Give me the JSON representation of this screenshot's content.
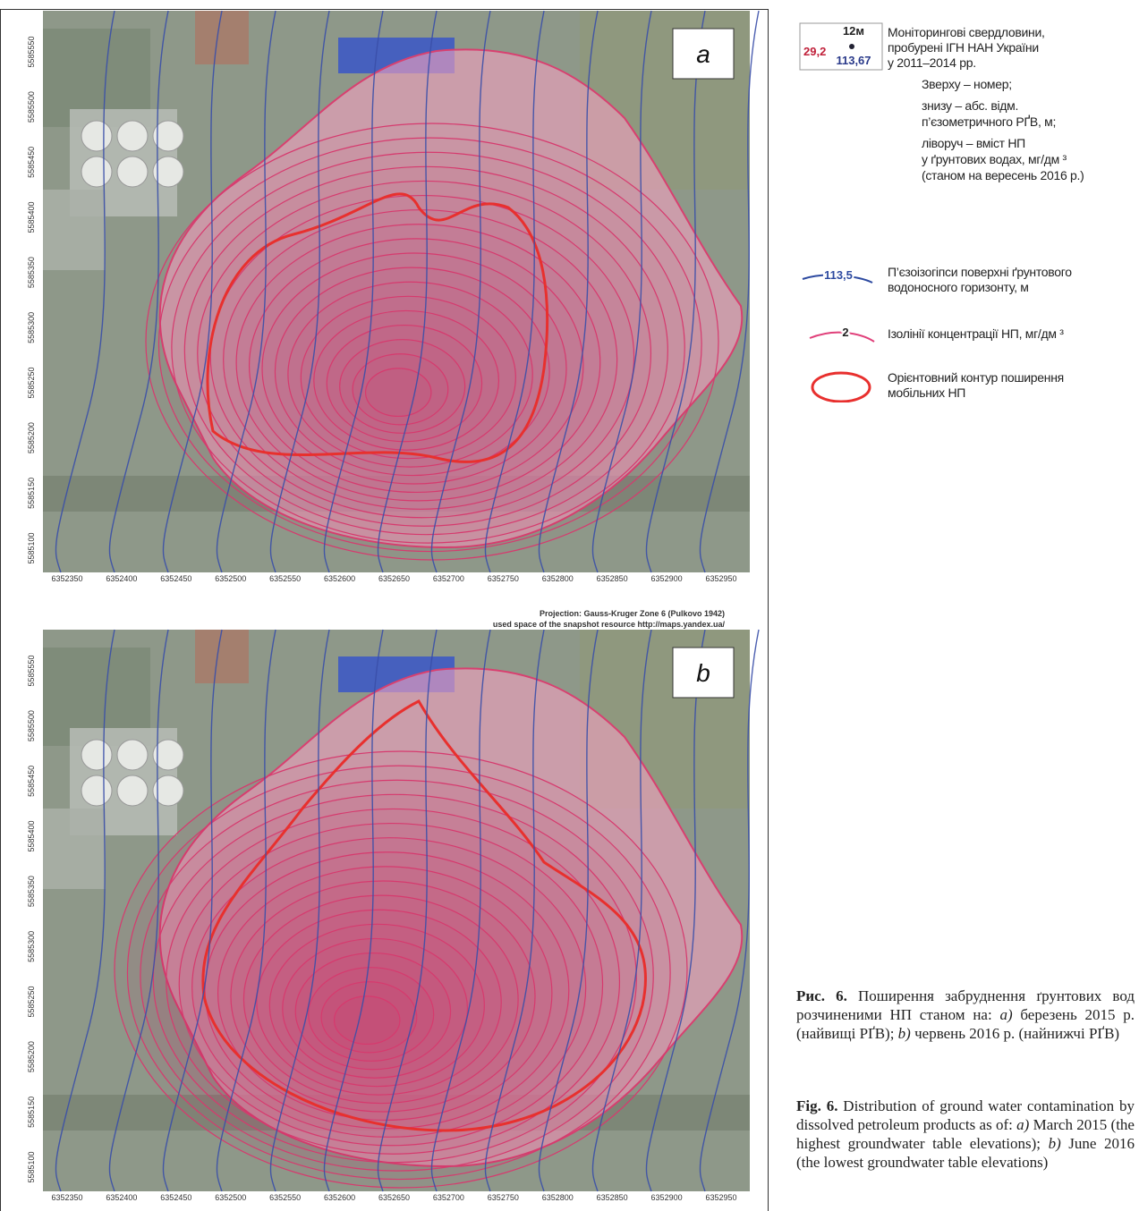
{
  "figure": {
    "panel_a": {
      "label": "a",
      "xticks": [
        6352350,
        6352400,
        6352450,
        6352500,
        6352550,
        6352600,
        6352650,
        6352700,
        6352750,
        6352800,
        6352850,
        6352900,
        6352950
      ],
      "yticks": [
        5585550,
        5585500,
        5585450,
        5585400,
        5585350,
        5585300,
        5585250,
        5585200,
        5585150,
        5585100
      ]
    },
    "projection": [
      "Projection: Gauss-Kruger  Zone 6 (Pulkovo 1942)",
      "used space of the snapshot resource http://maps.yandex.ua/"
    ],
    "panel_b": {
      "label": "b",
      "xticks": [
        6352350,
        6352400,
        6352450,
        6352500,
        6352550,
        6352600,
        6352650,
        6352700,
        6352750,
        6352800,
        6352850,
        6352900,
        6352950
      ],
      "yticks": [
        5585550,
        5585500,
        5585450,
        5585400,
        5585350,
        5585300,
        5585250,
        5585200,
        5585150,
        5585100
      ]
    }
  },
  "legend": {
    "well_symbol": {
      "number": "12м",
      "content": "29,2",
      "level": "113,67"
    },
    "wells": {
      "title": [
        "Моніторингові свердловини,",
        "пробурені ІГН НАН України",
        "у 2011–2014 рр."
      ],
      "notes": [
        "Зверху – номер;",
        "знизу – абс. відм.",
        "п’єзометричного РҐВ, м;",
        "ліворуч – вміст НП",
        "у ґрунтових водах, мг/дм ³",
        "(станом на вересень 2016 р.)"
      ]
    },
    "isohypses": {
      "sample": "113,5",
      "text": [
        "П’єзоізогіпси поверхні ґрунтового",
        "водоносного горизонту, м"
      ]
    },
    "isolines": {
      "sample": "2",
      "text": "Ізолінії концентрації НП, мг/дм ³"
    },
    "contour": {
      "text": [
        "Орієнтовний контур поширення",
        "мобільних НП"
      ]
    }
  },
  "caption": {
    "uk": {
      "label": "Рис. 6.",
      "parts": [
        " Поширення забруднення ґрунтових вод розчиненими НП станом на: ",
        "a)",
        " березень 2015 р. (найвищі РҐВ); ",
        "b)",
        " червень 2016 р. (найнижчі РҐВ)"
      ]
    },
    "en": {
      "label": "Fig. 6.",
      "parts": [
        " Distribution of ground water contamination by dissolved petroleum products as of: ",
        "a)",
        " March 2015 (the highest groundwater table elevations); ",
        "b)",
        " June 2016 (the lowest groundwater table elevations)"
      ]
    }
  }
}
